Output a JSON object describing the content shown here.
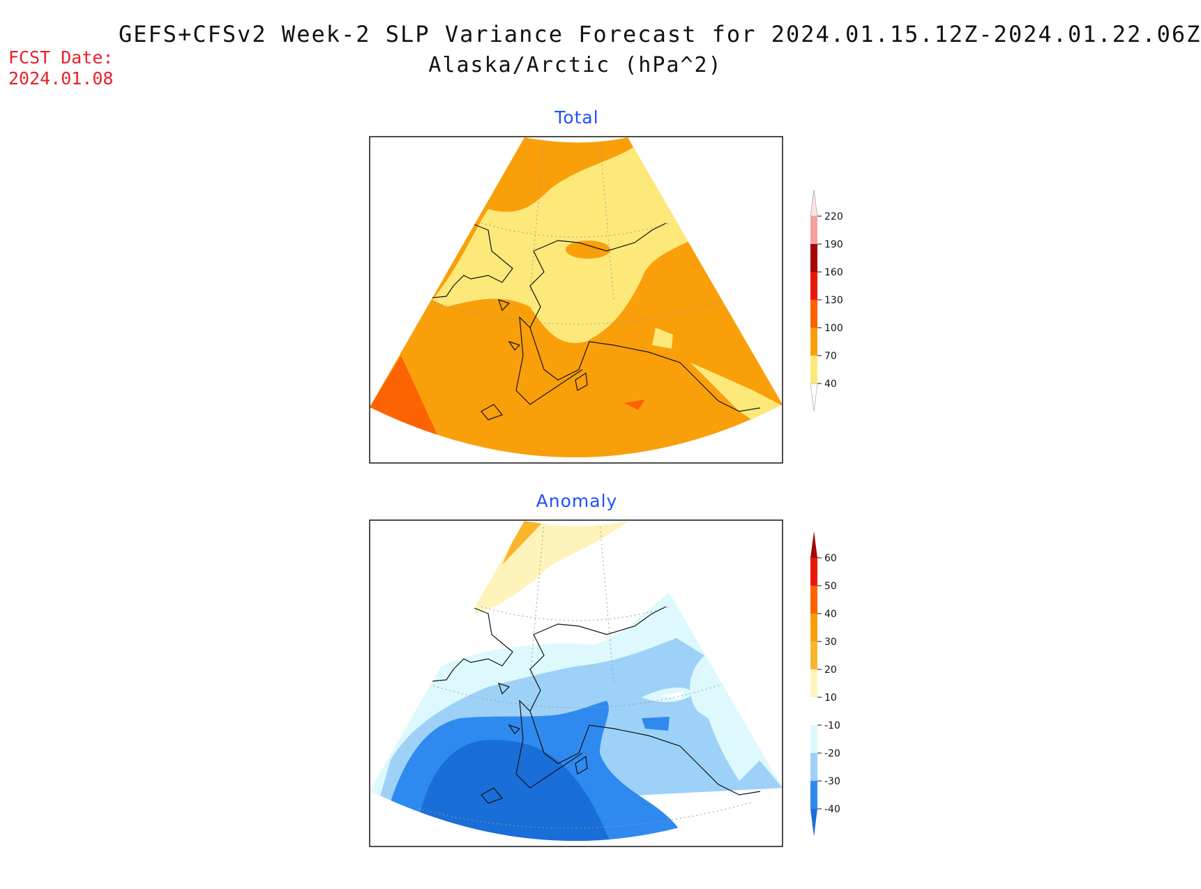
{
  "header": {
    "title": "GEFS+CFSv2 Week-2 SLP Variance Forecast for 2024.01.15.12Z-2024.01.22.06Z",
    "subtitle": "Alaska/Arctic (hPa^2)",
    "fcst_label": "FCST Date:",
    "fcst_date": "2024.01.08"
  },
  "panels": {
    "total": {
      "title": "Total",
      "legend_levels": [
        "40",
        "70",
        "100",
        "130",
        "160",
        "190",
        "220"
      ],
      "legend_colors": [
        "#fde97a",
        "#f99f0a",
        "#fb6303",
        "#e8190c",
        "#a50606",
        "#f4a3a3",
        "#fde3e3"
      ]
    },
    "anomaly": {
      "title": "Anomaly",
      "legend_levels": [
        "-40",
        "-30",
        "-20",
        "-10",
        "10",
        "20",
        "30",
        "40",
        "50",
        "60"
      ],
      "legend_colors": [
        "#1a6ed8",
        "#2f8af0",
        "#9dd1f7",
        "#def9fd",
        "#ffffff",
        "#fef4bb",
        "#f9b62c",
        "#f99d08",
        "#fb6303",
        "#e8190c",
        "#a50606"
      ]
    }
  },
  "colors": {
    "title_blue": "#1f4fff",
    "fcst_red": "#e8202a"
  }
}
